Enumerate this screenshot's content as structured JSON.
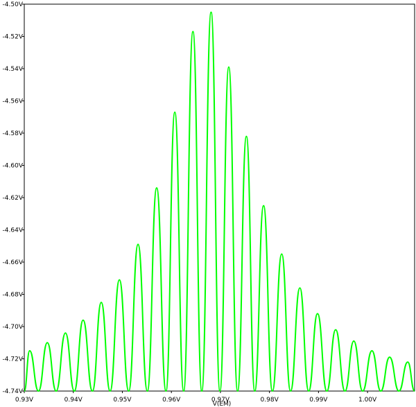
{
  "chart_data": {
    "type": "line",
    "xlabel": "V(EM)",
    "x": [
      0.93,
      0.9311,
      0.9329,
      0.9347,
      0.9365,
      0.9384,
      0.9402,
      0.942,
      0.9439,
      0.9457,
      0.9475,
      0.9494,
      0.9513,
      0.9532,
      0.9551,
      0.957,
      0.9589,
      0.9607,
      0.9625,
      0.9644,
      0.9662,
      0.9681,
      0.9699,
      0.9717,
      0.9735,
      0.9753,
      0.977,
      0.9788,
      0.9806,
      0.9825,
      0.9843,
      0.9862,
      0.988,
      0.9898,
      0.9917,
      0.9935,
      0.9954,
      0.9972,
      0.999,
      1.0009,
      1.0027,
      1.0045,
      1.0064,
      1.0082,
      1.0096
    ],
    "series": [
      {
        "name": "V(EM)",
        "color": "#00ff00",
        "values": [
          -4.74,
          -4.715,
          -4.74,
          -4.71,
          -4.74,
          -4.704,
          -4.74,
          -4.696,
          -4.74,
          -4.685,
          -4.74,
          -4.671,
          -4.74,
          -4.649,
          -4.74,
          -4.614,
          -4.74,
          -4.567,
          -4.74,
          -4.517,
          -4.74,
          -4.505,
          -4.74,
          -4.539,
          -4.74,
          -4.582,
          -4.74,
          -4.625,
          -4.74,
          -4.655,
          -4.74,
          -4.676,
          -4.74,
          -4.692,
          -4.74,
          -4.702,
          -4.74,
          -4.709,
          -4.74,
          -4.715,
          -4.74,
          -4.719,
          -4.74,
          -4.722,
          -4.74
        ]
      }
    ],
    "xlim": [
      0.93,
      1.0096
    ],
    "ylim": [
      -4.74,
      -4.5
    ],
    "xticks": [
      {
        "value": 0.93,
        "label": "0.93V"
      },
      {
        "value": 0.94,
        "label": "0.94V"
      },
      {
        "value": 0.95,
        "label": "0.95V"
      },
      {
        "value": 0.96,
        "label": "0.96V"
      },
      {
        "value": 0.97,
        "label": "0.97V"
      },
      {
        "value": 0.98,
        "label": "0.98V"
      },
      {
        "value": 0.99,
        "label": "0.99V"
      },
      {
        "value": 1.0,
        "label": "1.00V"
      }
    ],
    "yticks": [
      {
        "value": -4.74,
        "label": "-4.74V"
      },
      {
        "value": -4.72,
        "label": "-4.72V"
      },
      {
        "value": -4.7,
        "label": "-4.70V"
      },
      {
        "value": -4.68,
        "label": "-4.68V"
      },
      {
        "value": -4.66,
        "label": "-4.66V"
      },
      {
        "value": -4.64,
        "label": "-4.64V"
      },
      {
        "value": -4.62,
        "label": "-4.62V"
      },
      {
        "value": -4.6,
        "label": "-4.60V"
      },
      {
        "value": -4.58,
        "label": "-4.58V"
      },
      {
        "value": -4.56,
        "label": "-4.56V"
      },
      {
        "value": -4.54,
        "label": "-4.54V"
      },
      {
        "value": -4.52,
        "label": "-4.52V"
      },
      {
        "value": -4.5,
        "label": "-4.50V"
      }
    ],
    "grid": false
  }
}
